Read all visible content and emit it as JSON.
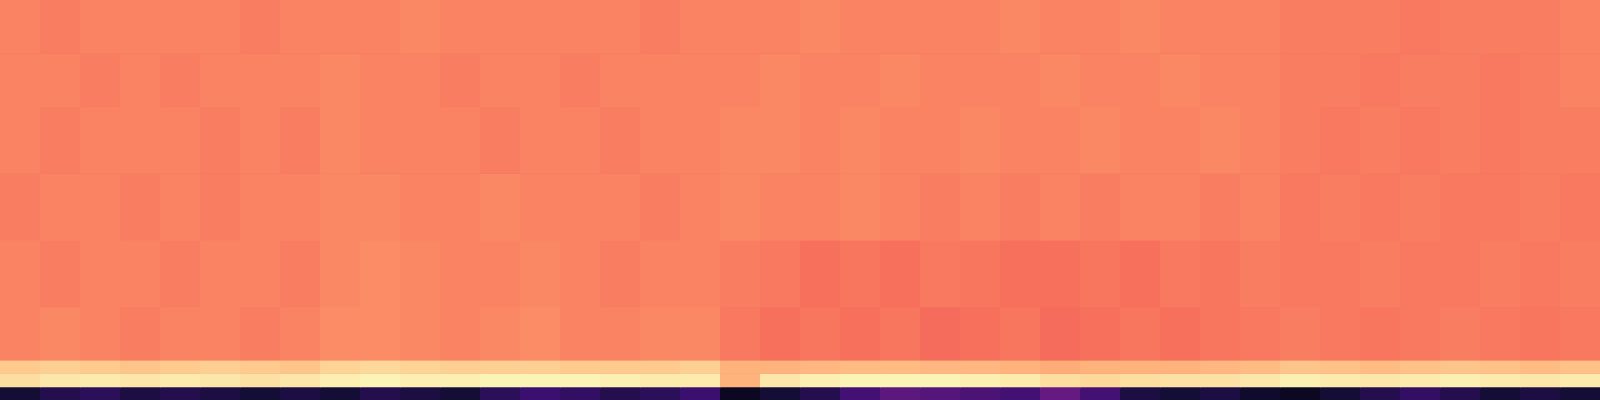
{
  "chart_data": {
    "type": "heatmap",
    "tick_labels": false,
    "xlim": [
      0,
      40
    ],
    "ylim": [
      0,
      30
    ],
    "color_range": [
      0,
      1
    ],
    "x_bins": [
      0,
      1,
      2,
      3,
      4,
      5,
      6,
      7,
      8,
      9,
      10,
      11,
      12,
      13,
      14,
      15,
      16,
      17,
      18,
      19,
      20,
      21,
      22,
      23,
      24,
      25,
      26,
      27,
      28,
      29,
      30,
      31,
      32,
      33,
      34,
      35,
      36,
      37,
      38,
      39,
      40
    ],
    "y_bins": [
      0,
      1,
      2,
      3,
      7,
      12,
      17,
      22,
      26,
      30
    ],
    "cells": [
      [
        0.1,
        0.14,
        0.16,
        0.12,
        0.14,
        0.12,
        0.1,
        0.12,
        0.1,
        0.14,
        0.12,
        0.1,
        0.16,
        0.2,
        0.18,
        0.14,
        0.16,
        0.2,
        0.06,
        0.1,
        0.14,
        0.22,
        0.28,
        0.26,
        0.24,
        0.22,
        0.3,
        0.22,
        0.12,
        0.1,
        0.12,
        0.08,
        0.06,
        0.1,
        0.14,
        0.18,
        0.14,
        0.1,
        0.12,
        0.1
      ],
      [
        0.93,
        0.95,
        0.96,
        0.95,
        0.96,
        0.95,
        0.94,
        0.95,
        0.97,
        0.98,
        0.97,
        0.97,
        0.98,
        0.98,
        0.98,
        0.97,
        0.96,
        0.96,
        0.84,
        0.95,
        0.97,
        0.98,
        0.98,
        0.98,
        0.97,
        0.96,
        0.93,
        0.92,
        0.93,
        0.94,
        0.94,
        0.95,
        0.97,
        0.96,
        0.95,
        0.96,
        0.97,
        0.96,
        0.95,
        0.96
      ],
      [
        0.89,
        0.9,
        0.89,
        0.88,
        0.89,
        0.9,
        0.89,
        0.88,
        0.91,
        0.92,
        0.91,
        0.9,
        0.9,
        0.9,
        0.89,
        0.89,
        0.89,
        0.9,
        0.84,
        0.84,
        0.85,
        0.86,
        0.86,
        0.85,
        0.85,
        0.84,
        0.83,
        0.84,
        0.84,
        0.84,
        0.85,
        0.86,
        0.88,
        0.87,
        0.86,
        0.87,
        0.88,
        0.87,
        0.86,
        0.87
      ],
      [
        0.74,
        0.75,
        0.74,
        0.73,
        0.74,
        0.74,
        0.73,
        0.74,
        0.76,
        0.76,
        0.75,
        0.74,
        0.75,
        0.76,
        0.74,
        0.74,
        0.75,
        0.75,
        0.72,
        0.7,
        0.71,
        0.7,
        0.71,
        0.69,
        0.7,
        0.71,
        0.69,
        0.7,
        0.71,
        0.7,
        0.71,
        0.72,
        0.73,
        0.72,
        0.71,
        0.72,
        0.73,
        0.72,
        0.71,
        0.72
      ],
      [
        0.74,
        0.73,
        0.74,
        0.74,
        0.73,
        0.74,
        0.74,
        0.73,
        0.75,
        0.76,
        0.75,
        0.74,
        0.74,
        0.75,
        0.74,
        0.73,
        0.74,
        0.74,
        0.73,
        0.72,
        0.7,
        0.71,
        0.7,
        0.72,
        0.71,
        0.7,
        0.7,
        0.71,
        0.7,
        0.72,
        0.71,
        0.73,
        0.72,
        0.72,
        0.73,
        0.72,
        0.72,
        0.73,
        0.72,
        0.73
      ],
      [
        0.73,
        0.74,
        0.74,
        0.73,
        0.74,
        0.73,
        0.74,
        0.74,
        0.75,
        0.75,
        0.74,
        0.74,
        0.75,
        0.74,
        0.74,
        0.74,
        0.73,
        0.74,
        0.75,
        0.74,
        0.74,
        0.75,
        0.74,
        0.73,
        0.74,
        0.73,
        0.74,
        0.73,
        0.74,
        0.74,
        0.73,
        0.74,
        0.72,
        0.73,
        0.72,
        0.73,
        0.72,
        0.72,
        0.73,
        0.72
      ],
      [
        0.74,
        0.73,
        0.74,
        0.74,
        0.74,
        0.73,
        0.74,
        0.73,
        0.75,
        0.74,
        0.74,
        0.74,
        0.73,
        0.74,
        0.74,
        0.73,
        0.74,
        0.74,
        0.75,
        0.75,
        0.74,
        0.75,
        0.74,
        0.74,
        0.75,
        0.74,
        0.74,
        0.75,
        0.74,
        0.74,
        0.75,
        0.74,
        0.73,
        0.72,
        0.73,
        0.72,
        0.73,
        0.72,
        0.73,
        0.73
      ],
      [
        0.74,
        0.74,
        0.73,
        0.74,
        0.73,
        0.74,
        0.74,
        0.74,
        0.75,
        0.74,
        0.74,
        0.73,
        0.74,
        0.74,
        0.73,
        0.74,
        0.74,
        0.74,
        0.74,
        0.75,
        0.74,
        0.74,
        0.75,
        0.74,
        0.74,
        0.74,
        0.75,
        0.74,
        0.74,
        0.75,
        0.74,
        0.74,
        0.73,
        0.73,
        0.72,
        0.73,
        0.73,
        0.72,
        0.73,
        0.74
      ],
      [
        0.74,
        0.73,
        0.74,
        0.74,
        0.74,
        0.74,
        0.73,
        0.74,
        0.74,
        0.74,
        0.75,
        0.74,
        0.74,
        0.74,
        0.74,
        0.74,
        0.73,
        0.74,
        0.74,
        0.74,
        0.75,
        0.74,
        0.74,
        0.74,
        0.74,
        0.75,
        0.74,
        0.74,
        0.75,
        0.74,
        0.74,
        0.74,
        0.73,
        0.73,
        0.73,
        0.72,
        0.73,
        0.73,
        0.73,
        0.74
      ]
    ]
  }
}
